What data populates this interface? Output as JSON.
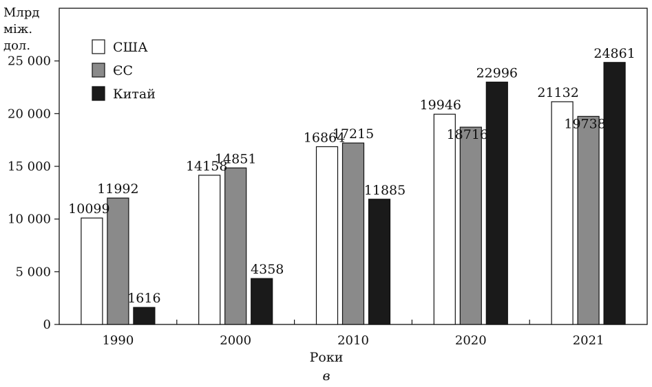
{
  "chart_data": {
    "type": "bar",
    "categories": [
      "1990",
      "2000",
      "2010",
      "2020",
      "2021"
    ],
    "series": [
      {
        "name": "США",
        "color": "#ffffff",
        "values": [
          10099,
          14158,
          16864,
          19946,
          21132
        ]
      },
      {
        "name": "ЄС",
        "color": "#8a8a8a",
        "values": [
          11992,
          14851,
          17215,
          18716,
          19738
        ]
      },
      {
        "name": "Китай",
        "color": "#1a1a1a",
        "values": [
          1616,
          4358,
          11885,
          22996,
          24861
        ]
      }
    ],
    "ylabel_lines": [
      "Млрд",
      "між.",
      "дол."
    ],
    "xlabel": "Роки",
    "subcaption": "в",
    "ylim": [
      0,
      30000
    ],
    "yticks": [
      0,
      5000,
      10000,
      15000,
      20000,
      25000
    ],
    "ytick_labels": [
      "0",
      "5 000",
      "10 000",
      "15 000",
      "20 000",
      "25 000"
    ],
    "legend_position": "top-left",
    "grid": false
  }
}
